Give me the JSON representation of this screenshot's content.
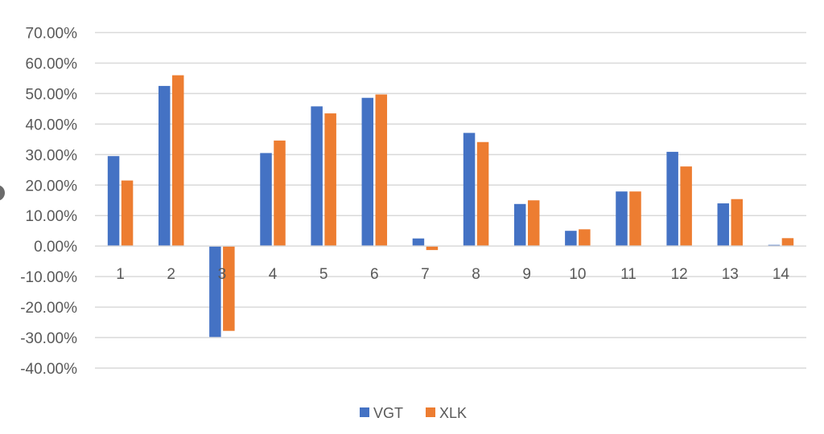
{
  "chart_data": {
    "type": "bar",
    "categories": [
      "1",
      "2",
      "3",
      "4",
      "5",
      "6",
      "7",
      "8",
      "9",
      "10",
      "11",
      "12",
      "13",
      "14"
    ],
    "series": [
      {
        "name": "VGT",
        "color": "#4472C4",
        "values": [
          29.5,
          52.5,
          -29.8,
          30.5,
          45.8,
          48.6,
          2.5,
          37.1,
          13.8,
          5.0,
          17.9,
          30.9,
          14.0,
          0.4
        ]
      },
      {
        "name": "XLK",
        "color": "#ED7D31",
        "values": [
          21.5,
          56.0,
          -27.8,
          34.6,
          43.5,
          49.7,
          -1.3,
          34.1,
          15.0,
          5.5,
          17.9,
          26.1,
          15.4,
          2.6
        ]
      }
    ],
    "ylim": [
      -40,
      70
    ],
    "yticks": [
      70,
      60,
      50,
      40,
      30,
      20,
      10,
      0,
      -10,
      -20,
      -30,
      -40
    ],
    "ytick_labels": [
      "70.00%",
      "60.00%",
      "50.00%",
      "40.00%",
      "30.00%",
      "20.00%",
      "10.00%",
      "0.00%",
      "-10.00%",
      "-20.00%",
      "-30.00%",
      "-40.00%"
    ],
    "title": "",
    "xlabel": "",
    "ylabel": "",
    "grid": true,
    "legend_position": "bottom"
  }
}
